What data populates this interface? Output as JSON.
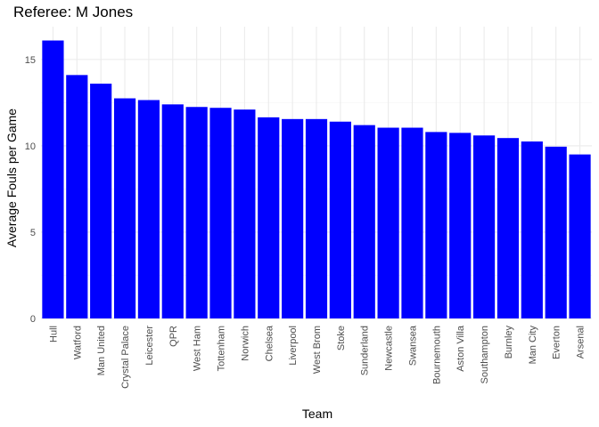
{
  "chart_data": {
    "type": "bar",
    "title": "Referee: M Jones",
    "xlabel": "Team",
    "ylabel": "Average Fouls per Game",
    "categories": [
      "Hull",
      "Watford",
      "Man United",
      "Crystal Palace",
      "Leicester",
      "QPR",
      "West Ham",
      "Tottenham",
      "Norwich",
      "Chelsea",
      "Liverpool",
      "West Brom",
      "Stoke",
      "Sunderland",
      "Newcastle",
      "Swansea",
      "Bournemouth",
      "Aston Villa",
      "Southampton",
      "Burnley",
      "Man City",
      "Everton",
      "Arsenal"
    ],
    "values": [
      16.1,
      14.1,
      13.6,
      12.75,
      12.65,
      12.4,
      12.25,
      12.2,
      12.1,
      11.65,
      11.55,
      11.55,
      11.4,
      11.2,
      11.05,
      11.05,
      10.8,
      10.75,
      10.6,
      10.45,
      10.25,
      9.95,
      9.5
    ],
    "yticks": [
      0,
      5,
      10,
      15
    ],
    "ylim": [
      0,
      16.9
    ],
    "bar_color": "#0000FF",
    "grid": true,
    "legend": "none"
  }
}
